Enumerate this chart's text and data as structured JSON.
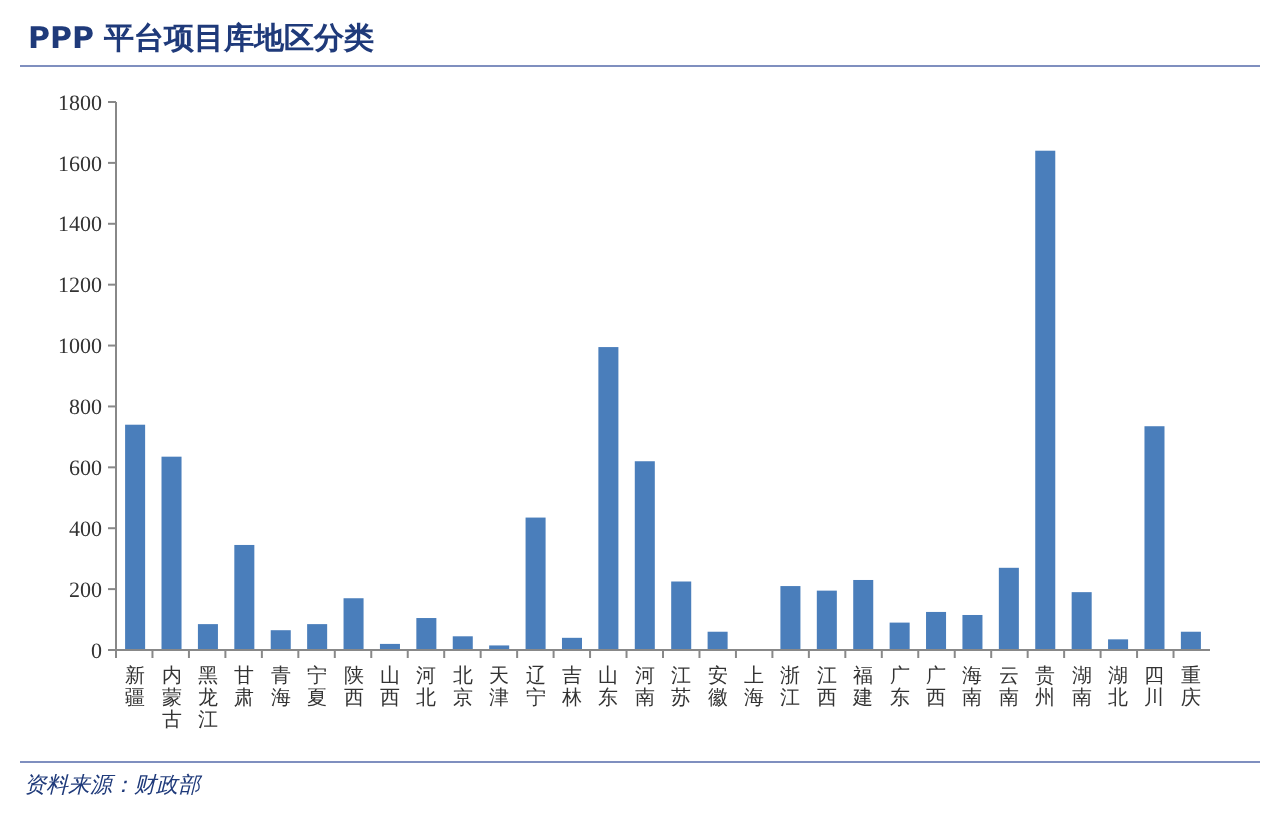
{
  "chart_data": {
    "type": "bar",
    "title": "PPP 平台项目库地区分类",
    "categories": [
      "新疆",
      "内蒙古",
      "黑龙江",
      "甘肃",
      "青海",
      "宁夏",
      "陕西",
      "山西",
      "河北",
      "北京",
      "天津",
      "辽宁",
      "吉林",
      "山东",
      "河南",
      "江苏",
      "安徽",
      "上海",
      "浙江",
      "江西",
      "福建",
      "广东",
      "广西",
      "海南",
      "云南",
      "贵州",
      "湖南",
      "湖北",
      "四川",
      "重庆"
    ],
    "values": [
      740,
      635,
      85,
      345,
      65,
      85,
      170,
      20,
      105,
      45,
      15,
      435,
      40,
      995,
      620,
      225,
      60,
      0,
      210,
      195,
      230,
      90,
      125,
      115,
      270,
      1640,
      190,
      35,
      735,
      60
    ],
    "color": "#4a7ebb",
    "ylim": [
      0,
      1800
    ],
    "yticks": [
      0,
      200,
      400,
      600,
      800,
      1000,
      1200,
      1400,
      1600,
      1800
    ],
    "grid": false,
    "annotations": [
      "资料来源：财政部"
    ]
  }
}
